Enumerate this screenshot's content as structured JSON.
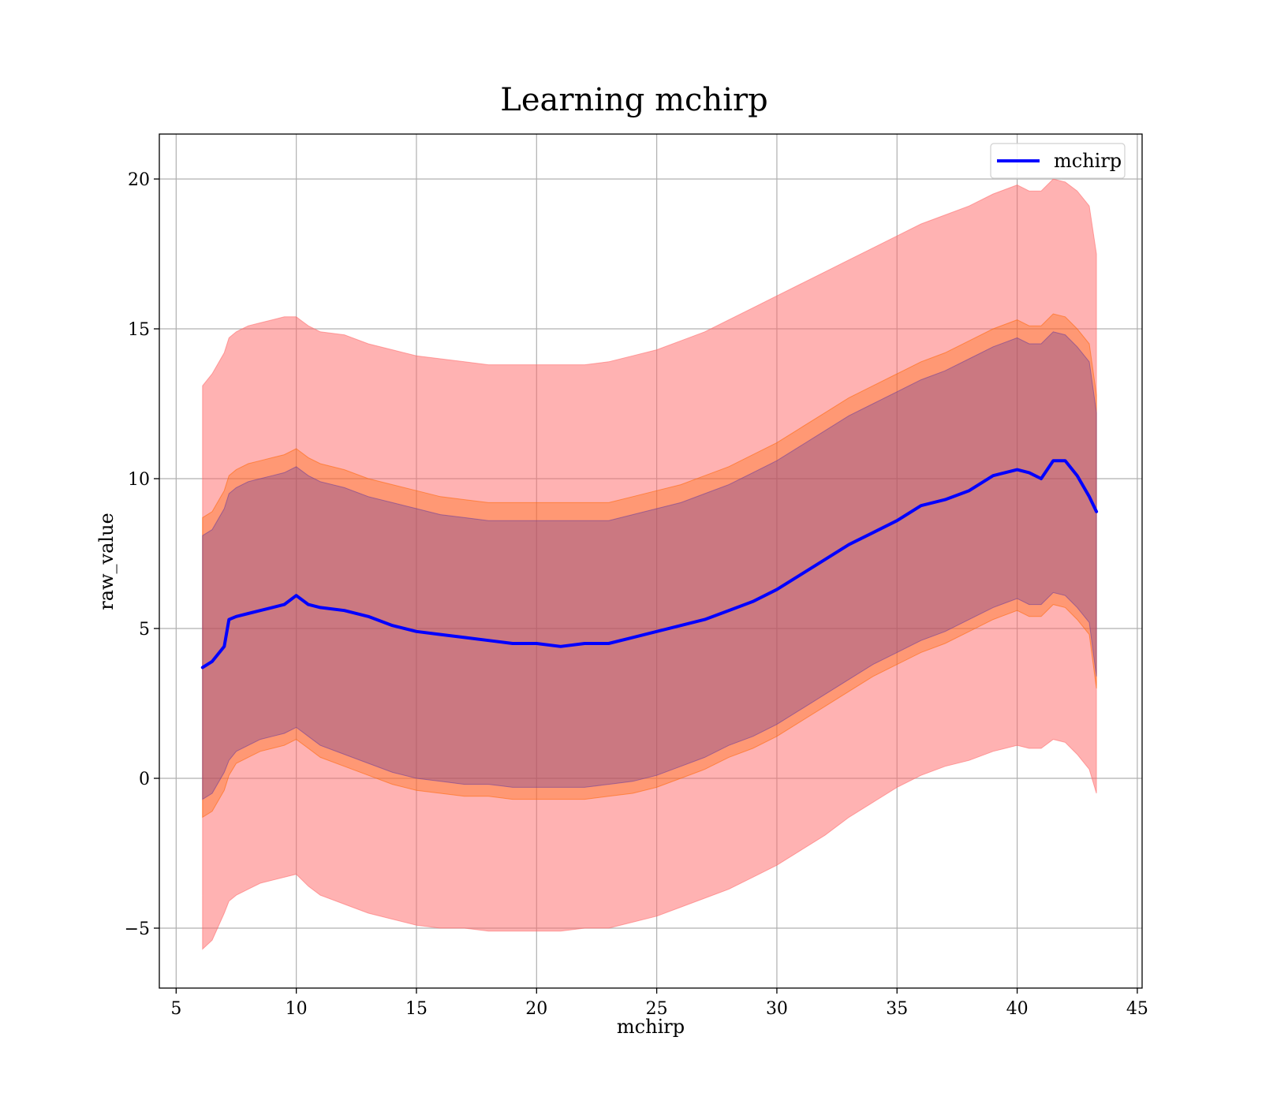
{
  "chart_data": {
    "type": "line",
    "title": "Learning mchirp",
    "xlabel": "mchirp",
    "ylabel": "raw_value",
    "xlim": [
      4.3,
      45.2
    ],
    "ylim": [
      -7.0,
      21.5
    ],
    "xticks": [
      5,
      10,
      15,
      20,
      25,
      30,
      35,
      40,
      45
    ],
    "yticks": [
      -5,
      0,
      5,
      10,
      15,
      20
    ],
    "ytick_labels": [
      "−5",
      "0",
      "5",
      "10",
      "15",
      "20"
    ],
    "grid": true,
    "legend": {
      "position": "top-right",
      "entries": [
        "mchirp"
      ]
    },
    "x": [
      6.1,
      6.5,
      7.0,
      7.2,
      7.5,
      8.0,
      8.5,
      9.0,
      9.5,
      10.0,
      10.5,
      11.0,
      12.0,
      13.0,
      14.0,
      15.0,
      16.0,
      17.0,
      18.0,
      19.0,
      20.0,
      21.0,
      22.0,
      23.0,
      24.0,
      25.0,
      26.0,
      27.0,
      28.0,
      29.0,
      30.0,
      31.0,
      32.0,
      33.0,
      34.0,
      35.0,
      36.0,
      37.0,
      38.0,
      39.0,
      40.0,
      40.5,
      41.0,
      41.5,
      42.0,
      42.5,
      43.0,
      43.3
    ],
    "series": [
      {
        "name": "mchirp",
        "color": "#0000ff",
        "values": [
          3.7,
          3.9,
          4.4,
          5.3,
          5.4,
          5.5,
          5.6,
          5.7,
          5.8,
          6.1,
          5.8,
          5.7,
          5.6,
          5.4,
          5.1,
          4.9,
          4.8,
          4.7,
          4.6,
          4.5,
          4.5,
          4.4,
          4.5,
          4.5,
          4.7,
          4.9,
          5.1,
          5.3,
          5.6,
          5.9,
          6.3,
          6.8,
          7.3,
          7.8,
          8.2,
          8.6,
          9.1,
          9.3,
          9.6,
          10.1,
          10.3,
          10.2,
          10.0,
          10.6,
          10.6,
          10.1,
          9.4,
          8.9
        ]
      }
    ],
    "bands": [
      {
        "color": "#ff6666",
        "opacity": 0.5,
        "lower": [
          -5.7,
          -5.4,
          -4.5,
          -4.1,
          -3.9,
          -3.7,
          -3.5,
          -3.4,
          -3.3,
          -3.2,
          -3.6,
          -3.9,
          -4.2,
          -4.5,
          -4.7,
          -4.9,
          -5.0,
          -5.0,
          -5.1,
          -5.1,
          -5.1,
          -5.1,
          -5.0,
          -5.0,
          -4.8,
          -4.6,
          -4.3,
          -4.0,
          -3.7,
          -3.3,
          -2.9,
          -2.4,
          -1.9,
          -1.3,
          -0.8,
          -0.3,
          0.1,
          0.4,
          0.6,
          0.9,
          1.1,
          1.0,
          1.0,
          1.3,
          1.2,
          0.8,
          0.3,
          -0.5
        ],
        "upper": [
          13.1,
          13.5,
          14.2,
          14.7,
          14.9,
          15.1,
          15.2,
          15.3,
          15.4,
          15.4,
          15.1,
          14.9,
          14.8,
          14.5,
          14.3,
          14.1,
          14.0,
          13.9,
          13.8,
          13.8,
          13.8,
          13.8,
          13.8,
          13.9,
          14.1,
          14.3,
          14.6,
          14.9,
          15.3,
          15.7,
          16.1,
          16.5,
          16.9,
          17.3,
          17.7,
          18.1,
          18.5,
          18.8,
          19.1,
          19.5,
          19.8,
          19.6,
          19.6,
          20.0,
          19.9,
          19.6,
          19.1,
          17.5
        ]
      },
      {
        "color": "#ff6600",
        "opacity": 0.35,
        "lower": [
          -1.3,
          -1.1,
          -0.4,
          0.1,
          0.5,
          0.7,
          0.9,
          1.0,
          1.1,
          1.3,
          1.0,
          0.7,
          0.4,
          0.1,
          -0.2,
          -0.4,
          -0.5,
          -0.6,
          -0.6,
          -0.7,
          -0.7,
          -0.7,
          -0.7,
          -0.6,
          -0.5,
          -0.3,
          0.0,
          0.3,
          0.7,
          1.0,
          1.4,
          1.9,
          2.4,
          2.9,
          3.4,
          3.8,
          4.2,
          4.5,
          4.9,
          5.3,
          5.6,
          5.4,
          5.4,
          5.8,
          5.7,
          5.3,
          4.8,
          3.0
        ],
        "upper": [
          8.7,
          8.9,
          9.6,
          10.1,
          10.3,
          10.5,
          10.6,
          10.7,
          10.8,
          11.0,
          10.7,
          10.5,
          10.3,
          10.0,
          9.8,
          9.6,
          9.4,
          9.3,
          9.2,
          9.2,
          9.2,
          9.2,
          9.2,
          9.2,
          9.4,
          9.6,
          9.8,
          10.1,
          10.4,
          10.8,
          11.2,
          11.7,
          12.2,
          12.7,
          13.1,
          13.5,
          13.9,
          14.2,
          14.6,
          15.0,
          15.3,
          15.1,
          15.1,
          15.5,
          15.4,
          15.0,
          14.5,
          12.8
        ]
      },
      {
        "color": "#6a3d9a",
        "opacity": 0.35,
        "lower": [
          -0.7,
          -0.5,
          0.2,
          0.6,
          0.9,
          1.1,
          1.3,
          1.4,
          1.5,
          1.7,
          1.4,
          1.1,
          0.8,
          0.5,
          0.2,
          0.0,
          -0.1,
          -0.2,
          -0.2,
          -0.3,
          -0.3,
          -0.3,
          -0.3,
          -0.2,
          -0.1,
          0.1,
          0.4,
          0.7,
          1.1,
          1.4,
          1.8,
          2.3,
          2.8,
          3.3,
          3.8,
          4.2,
          4.6,
          4.9,
          5.3,
          5.7,
          6.0,
          5.8,
          5.8,
          6.2,
          6.1,
          5.7,
          5.2,
          3.4
        ],
        "upper": [
          8.1,
          8.3,
          9.0,
          9.5,
          9.7,
          9.9,
          10.0,
          10.1,
          10.2,
          10.4,
          10.1,
          9.9,
          9.7,
          9.4,
          9.2,
          9.0,
          8.8,
          8.7,
          8.6,
          8.6,
          8.6,
          8.6,
          8.6,
          8.6,
          8.8,
          9.0,
          9.2,
          9.5,
          9.8,
          10.2,
          10.6,
          11.1,
          11.6,
          12.1,
          12.5,
          12.9,
          13.3,
          13.6,
          14.0,
          14.4,
          14.7,
          14.5,
          14.5,
          14.9,
          14.8,
          14.4,
          13.9,
          12.2
        ]
      }
    ]
  }
}
